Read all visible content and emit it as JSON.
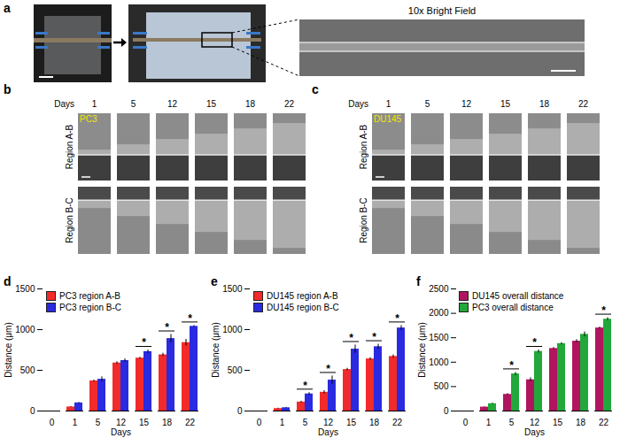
{
  "figure": {
    "panel_a": {
      "title": "a",
      "zoom_title": "10x Bright Field"
    },
    "image_panels": [
      {
        "title": "b",
        "cell_line": "PC3",
        "header": "Days",
        "days": [
          1,
          5,
          12,
          15,
          18,
          22
        ],
        "rows": [
          "Region A-B",
          "Region B-C"
        ]
      },
      {
        "title": "c",
        "cell_line": "DU145",
        "header": "Days",
        "days": [
          1,
          5,
          12,
          15,
          18,
          22
        ],
        "rows": [
          "Region A-B",
          "Region B-C"
        ]
      }
    ]
  },
  "chart_data": [
    {
      "type": "bar",
      "title": "d",
      "x_label": "Days",
      "y_label": "Distance (μm)",
      "categories": [
        "0",
        "1",
        "5",
        "12",
        "15",
        "18",
        "22"
      ],
      "series": [
        {
          "name": "PC3 region A-B",
          "color": "#f22a2a",
          "values": [
            0,
            50,
            370,
            590,
            650,
            690,
            840
          ],
          "errors": [
            0,
            5,
            10,
            15,
            10,
            20,
            40
          ]
        },
        {
          "name": "PC3 region B-C",
          "color": "#2a2ae0",
          "values": [
            0,
            100,
            390,
            620,
            730,
            890,
            1040
          ],
          "errors": [
            0,
            5,
            30,
            20,
            20,
            50,
            10
          ]
        }
      ],
      "ylim": [
        0,
        1500
      ],
      "yticks": [
        0,
        500,
        1000,
        1500
      ],
      "legend": "top-left",
      "annotations": [
        {
          "category": "15",
          "text": "*"
        },
        {
          "category": "18",
          "text": "*"
        },
        {
          "category": "22",
          "text": "*"
        }
      ]
    },
    {
      "type": "bar",
      "title": "e",
      "x_label": "Days",
      "y_label": "Distance (μm)",
      "categories": [
        "0",
        "1",
        "5",
        "12",
        "15",
        "18",
        "22"
      ],
      "series": [
        {
          "name": "DU145 region A-B",
          "color": "#f22a2a",
          "values": [
            0,
            30,
            110,
            230,
            510,
            640,
            670
          ],
          "errors": [
            0,
            5,
            10,
            20,
            15,
            15,
            20
          ]
        },
        {
          "name": "DU145 region B-C",
          "color": "#2a2ae0",
          "values": [
            0,
            40,
            210,
            380,
            760,
            790,
            1020
          ],
          "errors": [
            0,
            5,
            15,
            50,
            50,
            30,
            30
          ]
        }
      ],
      "ylim": [
        0,
        1500
      ],
      "yticks": [
        0,
        500,
        1000,
        1500
      ],
      "legend": "top-left",
      "annotations": [
        {
          "category": "5",
          "text": "*"
        },
        {
          "category": "12",
          "text": "*"
        },
        {
          "category": "15",
          "text": "*"
        },
        {
          "category": "18",
          "text": "*"
        },
        {
          "category": "22",
          "text": "*"
        }
      ]
    },
    {
      "type": "bar",
      "title": "f",
      "x_label": "Days",
      "y_label": "Distance (μm)",
      "categories": [
        "0",
        "1",
        "5",
        "12",
        "15",
        "18",
        "22"
      ],
      "series": [
        {
          "name": "DU145 overall distance",
          "color": "#b0155e",
          "values": [
            0,
            80,
            340,
            640,
            1280,
            1430,
            1700
          ],
          "errors": [
            0,
            5,
            15,
            40,
            20,
            30,
            20
          ]
        },
        {
          "name": "PC3 overall distance",
          "color": "#22a83a",
          "values": [
            0,
            150,
            760,
            1220,
            1380,
            1570,
            1880
          ],
          "errors": [
            0,
            10,
            30,
            30,
            20,
            50,
            30
          ]
        }
      ],
      "ylim": [
        0,
        2500
      ],
      "yticks": [
        0,
        500,
        1000,
        1500,
        2000,
        2500
      ],
      "legend": "top-left",
      "annotations": [
        {
          "category": "5",
          "text": "*"
        },
        {
          "category": "12",
          "text": "*"
        },
        {
          "category": "22",
          "text": "*"
        }
      ]
    }
  ]
}
